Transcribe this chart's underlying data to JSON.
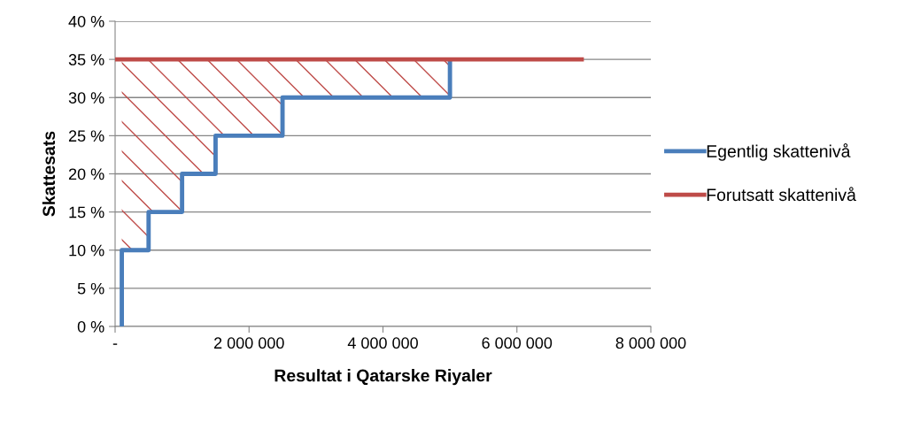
{
  "chart_data": {
    "type": "step",
    "xlabel": "Resultat i Qatarske Riyaler",
    "ylabel": "Skattesats",
    "series": [
      {
        "name": "Egentlig skattenivå",
        "color": "#4a7ebb",
        "x": [
          100000,
          100000,
          500000,
          1000000,
          1500000,
          2500000,
          5000000
        ],
        "values": [
          0,
          10,
          15,
          20,
          25,
          30,
          35
        ]
      },
      {
        "name": "Forutsatt skattenivå",
        "color": "#be4b48",
        "type": "line",
        "x": [
          0,
          7000000
        ],
        "values": [
          35,
          35
        ]
      }
    ],
    "xlim": [
      0,
      8000000
    ],
    "xticks": [
      {
        "value": 0,
        "label": "-"
      },
      {
        "value": 2000000,
        "label": "2 000 000"
      },
      {
        "value": 4000000,
        "label": "4 000 000"
      },
      {
        "value": 6000000,
        "label": "6 000 000"
      },
      {
        "value": 8000000,
        "label": "8 000 000"
      }
    ],
    "ylim": [
      0,
      40
    ],
    "yticks": [
      {
        "value": 0,
        "label": "0 %"
      },
      {
        "value": 5,
        "label": "5 %"
      },
      {
        "value": 10,
        "label": "10 %"
      },
      {
        "value": 15,
        "label": "15 %"
      },
      {
        "value": 20,
        "label": "20 %"
      },
      {
        "value": 25,
        "label": "25 %"
      },
      {
        "value": 30,
        "label": "30 %"
      },
      {
        "value": 35,
        "label": "35 %"
      },
      {
        "value": 40,
        "label": "40 %"
      }
    ],
    "grid": "y",
    "legend": "right",
    "marker": "none",
    "line_style": "solid"
  }
}
